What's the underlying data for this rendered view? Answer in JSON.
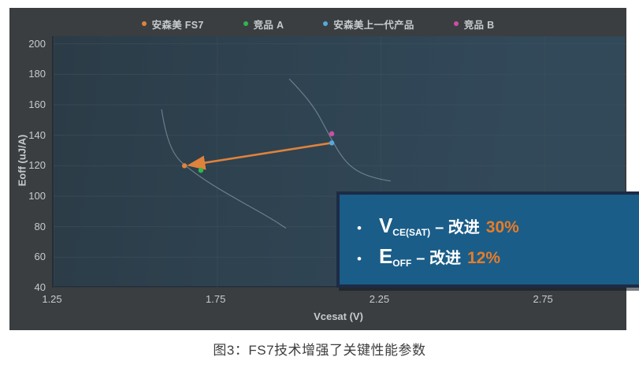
{
  "colors": {
    "chart_bg": "#3a3e41",
    "plot_bg_left": "#2b3c47",
    "plot_bg_right": "#32495a",
    "grid": "#42525d",
    "axis": "#232e37",
    "tick_text": "#c7cbce",
    "curve": "#9db0ba",
    "arrow": "#e0823c",
    "accent_orange": "#e87c28",
    "callout_bg": "#1a5d88",
    "callout_border": "#1d2b45"
  },
  "chart_data": {
    "type": "scatter",
    "xlabel": "Vcesat (V)",
    "ylabel": "Eoff (uJ/A)",
    "xlim": [
      1.25,
      3.0
    ],
    "ylim": [
      40,
      205
    ],
    "xticks": [
      "1.25",
      "1.75",
      "2.25",
      "2.75"
    ],
    "yticks": [
      200,
      180,
      160,
      140,
      120,
      100,
      80,
      60,
      40
    ],
    "grid": true,
    "legend_position": "top",
    "series": [
      {
        "name": "安森美 FS7",
        "color": "#e0823c",
        "points": [
          [
            1.65,
            120
          ]
        ]
      },
      {
        "name": "竞品 A",
        "color": "#2db84d",
        "points": [
          [
            1.7,
            117
          ]
        ]
      },
      {
        "name": "安森美上一代产品",
        "color": "#54aadc",
        "points": [
          [
            2.1,
            135
          ]
        ]
      },
      {
        "name": "竞品 B",
        "color": "#cc4fa5",
        "points": [
          [
            2.1,
            141
          ]
        ]
      }
    ],
    "tradeoff_curves": [
      {
        "points": [
          [
            1.58,
            157
          ],
          [
            1.59,
            143
          ],
          [
            1.62,
            126
          ],
          [
            1.67,
            117
          ],
          [
            1.73,
            108
          ],
          [
            1.81,
            98
          ],
          [
            1.91,
            86
          ],
          [
            1.96,
            79
          ]
        ]
      },
      {
        "points": [
          [
            1.97,
            177
          ],
          [
            2.01,
            168
          ],
          [
            2.05,
            157
          ],
          [
            2.08,
            145
          ],
          [
            2.1,
            137
          ],
          [
            2.13,
            126
          ],
          [
            2.16,
            119
          ],
          [
            2.2,
            114
          ],
          [
            2.25,
            111
          ],
          [
            2.28,
            110
          ]
        ]
      }
    ],
    "arrow": {
      "from": [
        2.1,
        135
      ],
      "to": [
        1.65,
        120
      ]
    }
  },
  "callout": {
    "items": [
      {
        "symbol": "V",
        "subscript": "CE(SAT)",
        "label": "– 改进",
        "value": "30%"
      },
      {
        "symbol": "E",
        "subscript": "OFF",
        "label": "– 改进",
        "value": "12%"
      }
    ]
  },
  "caption": "图3：FS7技术增强了关键性能参数"
}
